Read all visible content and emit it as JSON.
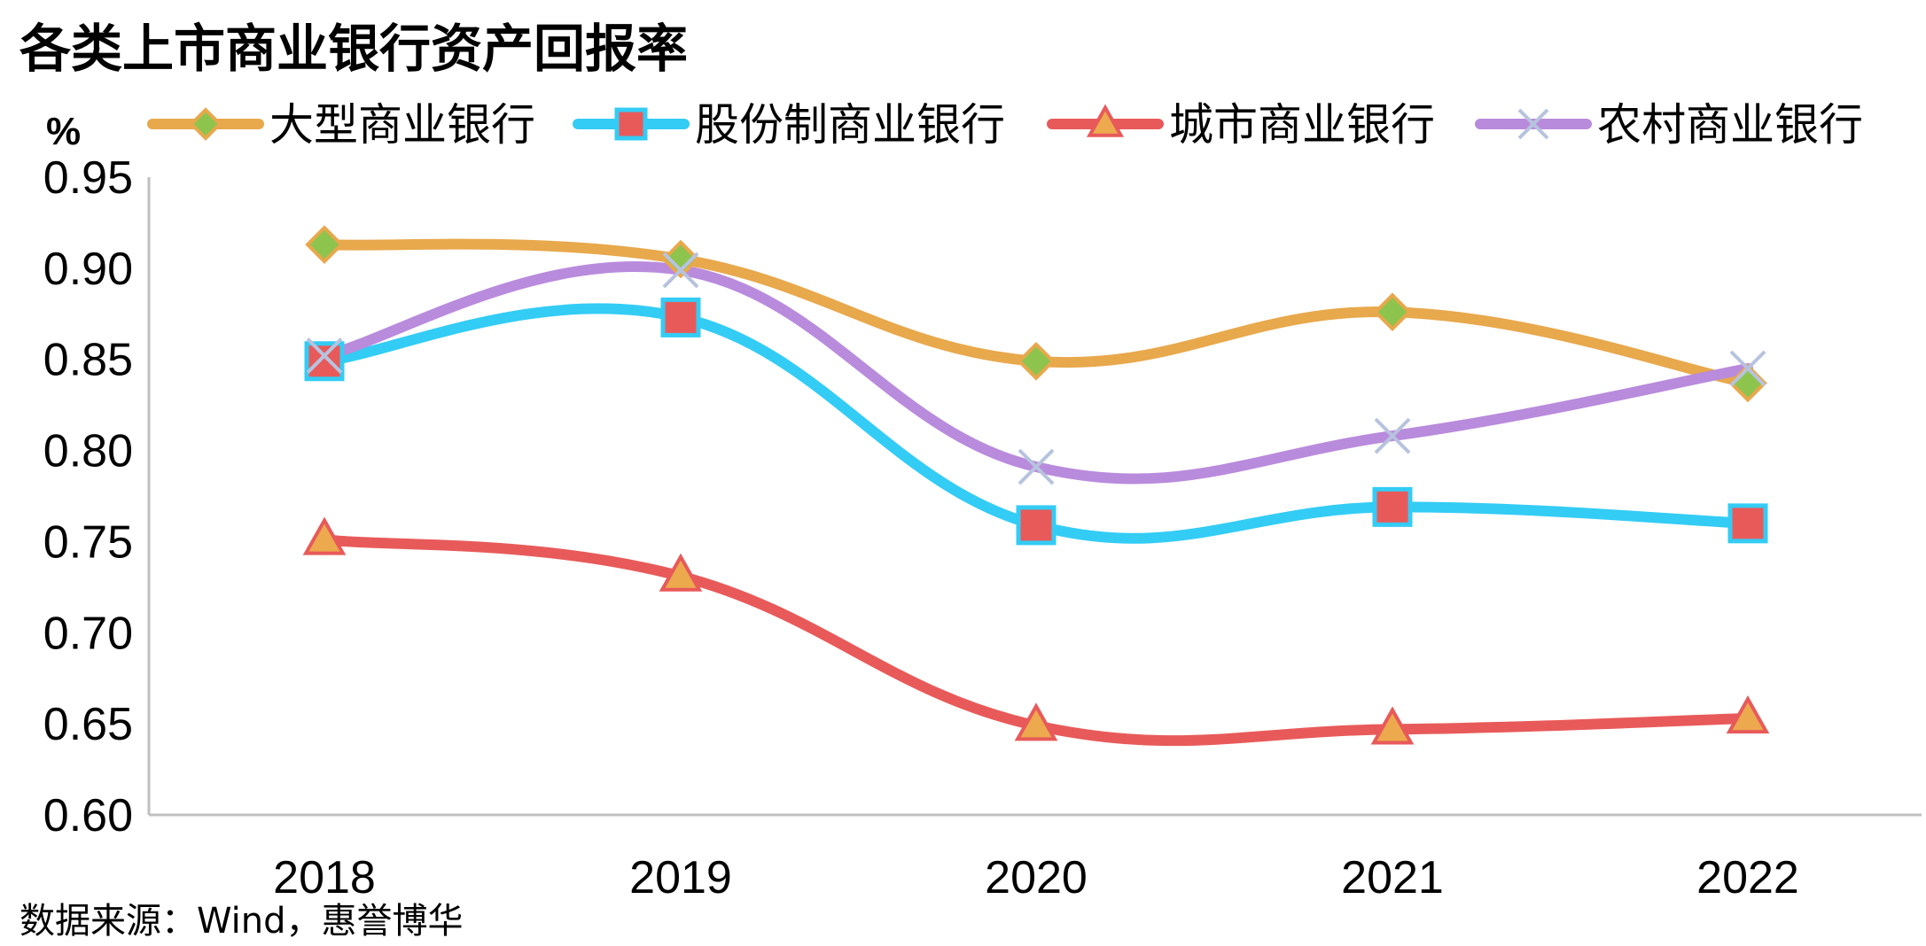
{
  "chart_data": {
    "type": "line",
    "title": "各类上市商业银行资产回报率",
    "ylabel": "%",
    "categories": [
      "2018",
      "2019",
      "2020",
      "2021",
      "2022"
    ],
    "ylim": [
      0.6,
      0.95
    ],
    "yticks": [
      "0.95",
      "0.90",
      "0.85",
      "0.80",
      "0.75",
      "0.70",
      "0.65",
      "0.60"
    ],
    "grid": false,
    "legend_position": "top",
    "series": [
      {
        "name": "大型商业银行",
        "values": [
          0.913,
          0.905,
          0.849,
          0.876,
          0.837
        ],
        "line_color": "#E8A84C",
        "marker": "diamond",
        "marker_fill": "#8DC44E",
        "marker_stroke": "#E8A84C"
      },
      {
        "name": "股份制商业银行",
        "values": [
          0.849,
          0.873,
          0.759,
          0.769,
          0.76
        ],
        "line_color": "#33CCF5",
        "marker": "square",
        "marker_fill": "#E85A5A",
        "marker_stroke": "#33CCF5"
      },
      {
        "name": "城市商业银行",
        "values": [
          0.751,
          0.731,
          0.649,
          0.647,
          0.653
        ],
        "line_color": "#E85A5A",
        "marker": "triangle",
        "marker_fill": "#EDA94E",
        "marker_stroke": "#E85A5A"
      },
      {
        "name": "农村商业银行",
        "values": [
          0.852,
          0.899,
          0.791,
          0.808,
          0.845
        ],
        "line_color": "#B98BDC",
        "marker": "x",
        "marker_fill": "none",
        "marker_stroke": "#B7C3DE"
      }
    ],
    "source": "数据来源：Wind，惠誉博华"
  }
}
